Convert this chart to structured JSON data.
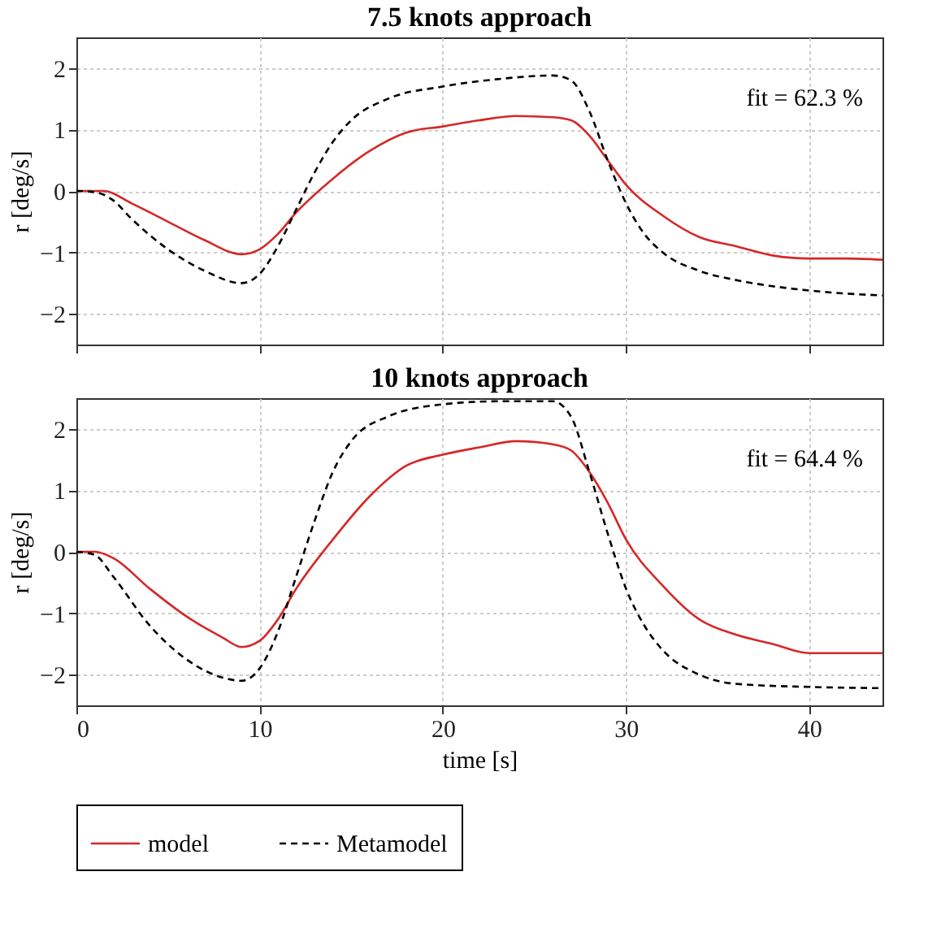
{
  "chart_data": [
    {
      "type": "line",
      "title": "7.5 knots approach",
      "ylabel": "r [deg/s]",
      "xlim": [
        0,
        44
      ],
      "xticks": [
        0,
        10,
        20,
        30,
        40
      ],
      "ylim": [
        -2.5,
        2.5
      ],
      "yticks": [
        -2,
        -1,
        0,
        1,
        2
      ],
      "grid": true,
      "tick_labels": "y",
      "annotations": [
        "fit = 62.3 %"
      ],
      "series": [
        {
          "color": "#d62728",
          "line_style": "solid",
          "x": [
            0,
            1.5,
            3,
            5,
            7,
            9,
            10,
            11,
            12,
            14,
            16,
            18,
            20,
            22,
            24,
            26,
            27,
            28,
            29,
            30,
            32,
            34,
            36,
            38,
            40,
            42,
            44
          ],
          "values": [
            0,
            0,
            -0.2,
            -0.5,
            -0.8,
            -1.03,
            -0.95,
            -0.7,
            -0.35,
            0.2,
            0.65,
            0.95,
            1.05,
            1.15,
            1.22,
            1.2,
            1.15,
            0.9,
            0.5,
            0.1,
            -0.4,
            -0.75,
            -0.9,
            -1.05,
            -1.1,
            -1.1,
            -1.12
          ]
        },
        {
          "color": "#000000",
          "line_style": "dashed",
          "x": [
            0,
            1,
            2,
            3,
            5,
            7,
            9,
            10,
            11,
            12,
            13,
            14,
            15,
            17,
            20,
            23,
            26,
            27,
            28,
            29,
            30,
            31,
            32,
            34,
            36,
            38,
            40,
            42,
            44
          ],
          "values": [
            0,
            -0.02,
            -0.15,
            -0.45,
            -0.95,
            -1.3,
            -1.5,
            -1.35,
            -0.9,
            -0.3,
            0.3,
            0.8,
            1.15,
            1.5,
            1.7,
            1.82,
            1.88,
            1.8,
            1.3,
            0.5,
            -0.2,
            -0.7,
            -1.0,
            -1.3,
            -1.45,
            -1.55,
            -1.62,
            -1.67,
            -1.7
          ]
        }
      ]
    },
    {
      "type": "line",
      "title": "10 knots approach",
      "xlabel": "time [s]",
      "ylabel": "r [deg/s]",
      "xlim": [
        0,
        44
      ],
      "xticks": [
        0,
        10,
        20,
        30,
        40
      ],
      "ylim": [
        -2.5,
        2.5
      ],
      "yticks": [
        -2,
        -1,
        0,
        1,
        2
      ],
      "grid": true,
      "legend": "bottom",
      "annotations": [
        "fit = 64.4 %"
      ],
      "series": [
        {
          "name": "model",
          "color": "#d62728",
          "line_style": "solid",
          "x": [
            0,
            1,
            2,
            4,
            6,
            8,
            9,
            10,
            11,
            12,
            14,
            16,
            18,
            20,
            22,
            24,
            26,
            27,
            28,
            29,
            30,
            32,
            34,
            36,
            38,
            40,
            42,
            44
          ],
          "values": [
            0,
            0,
            -0.1,
            -0.6,
            -1.05,
            -1.4,
            -1.55,
            -1.45,
            -1.1,
            -0.6,
            0.2,
            0.9,
            1.4,
            1.58,
            1.7,
            1.8,
            1.75,
            1.65,
            1.3,
            0.8,
            0.2,
            -0.55,
            -1.1,
            -1.35,
            -1.5,
            -1.65,
            -1.65,
            -1.65
          ]
        },
        {
          "name": "Metamodel",
          "color": "#000000",
          "line_style": "dashed",
          "x": [
            0,
            1,
            2,
            4,
            6,
            8,
            9,
            10,
            11,
            12,
            13,
            14,
            15,
            17,
            20,
            23,
            26,
            27,
            28,
            29,
            30,
            31,
            32,
            34,
            36,
            40,
            44
          ],
          "values": [
            0,
            -0.05,
            -0.4,
            -1.2,
            -1.75,
            -2.05,
            -2.1,
            -1.9,
            -1.3,
            -0.4,
            0.5,
            1.3,
            1.8,
            2.2,
            2.4,
            2.45,
            2.45,
            2.2,
            1.3,
            0.3,
            -0.6,
            -1.2,
            -1.6,
            -2.0,
            -2.15,
            -2.2,
            -2.22
          ]
        }
      ]
    }
  ]
}
